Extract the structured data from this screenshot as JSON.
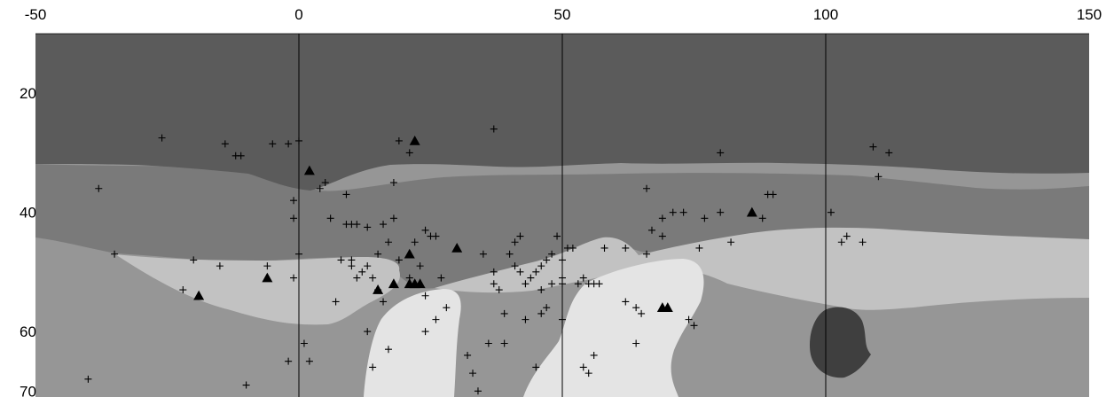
{
  "chart_data": {
    "type": "scatter",
    "title": "",
    "xlabel": "",
    "ylabel": "",
    "x_ticks": [
      -50,
      0,
      50,
      100,
      150
    ],
    "y_ticks": [
      20,
      40,
      60,
      70
    ],
    "x_range": [
      -50,
      150
    ],
    "y_range": [
      10,
      71
    ],
    "y_inverted": true,
    "vertical_lines_at": [
      0,
      50,
      100
    ],
    "region_colors": {
      "top_layer": "#5b5b5b",
      "upper_layer": "#7a7a7a",
      "middle_layer": "#969696",
      "light_layer": "#c2c2c2",
      "lightest_layer": "#e4e4e4",
      "dark_inclusion": "#3f3f3f"
    },
    "series": [
      {
        "marker": "plus",
        "points": [
          [
            -26,
            27.5
          ],
          [
            -14,
            28.5
          ],
          [
            -12,
            30.5
          ],
          [
            -11,
            30.5
          ],
          [
            -5,
            28.5
          ],
          [
            -2,
            28.5
          ],
          [
            0,
            28
          ],
          [
            -38,
            36
          ],
          [
            -35,
            47
          ],
          [
            -20,
            48
          ],
          [
            -15,
            49
          ],
          [
            -22,
            53
          ],
          [
            -6,
            49
          ],
          [
            -1,
            41
          ],
          [
            -1,
            38
          ],
          [
            -1,
            51
          ],
          [
            0,
            47
          ],
          [
            1,
            62
          ],
          [
            2,
            65
          ],
          [
            -2,
            65
          ],
          [
            4,
            36
          ],
          [
            5,
            35
          ],
          [
            6,
            41
          ],
          [
            9,
            37
          ],
          [
            9,
            42
          ],
          [
            10,
            42
          ],
          [
            11,
            42
          ],
          [
            13,
            42.5
          ],
          [
            7,
            55
          ],
          [
            8,
            48
          ],
          [
            10,
            48
          ],
          [
            11,
            51
          ],
          [
            12,
            50
          ],
          [
            13,
            49
          ],
          [
            14,
            51
          ],
          [
            10,
            49
          ],
          [
            15,
            47
          ],
          [
            15,
            53
          ],
          [
            16,
            55
          ],
          [
            13,
            60
          ],
          [
            14,
            66
          ],
          [
            17,
            63
          ],
          [
            18,
            35
          ],
          [
            16,
            42
          ],
          [
            18,
            41
          ],
          [
            17,
            45
          ],
          [
            19,
            48
          ],
          [
            21,
            51
          ],
          [
            22,
            52
          ],
          [
            21,
            30
          ],
          [
            22,
            45
          ],
          [
            23,
            49
          ],
          [
            24,
            43
          ],
          [
            25,
            44
          ],
          [
            26,
            44
          ],
          [
            27,
            51
          ],
          [
            19,
            28
          ],
          [
            24,
            54
          ],
          [
            24,
            60
          ],
          [
            26,
            58
          ],
          [
            28,
            56
          ],
          [
            32,
            64
          ],
          [
            33,
            67
          ],
          [
            34,
            70
          ],
          [
            36,
            62
          ],
          [
            37,
            50
          ],
          [
            37,
            52
          ],
          [
            38,
            53
          ],
          [
            39,
            57
          ],
          [
            39,
            62
          ],
          [
            41,
            45
          ],
          [
            40,
            47
          ],
          [
            41,
            49
          ],
          [
            42,
            50
          ],
          [
            43,
            52
          ],
          [
            43,
            58
          ],
          [
            44,
            51
          ],
          [
            45,
            50
          ],
          [
            45,
            66
          ],
          [
            46,
            53
          ],
          [
            46,
            57
          ],
          [
            47,
            56
          ],
          [
            48,
            52
          ],
          [
            49,
            44
          ],
          [
            48,
            47
          ],
          [
            50,
            48
          ],
          [
            51,
            46
          ],
          [
            50,
            51
          ],
          [
            50,
            52
          ],
          [
            50,
            58
          ],
          [
            53,
            52
          ],
          [
            52,
            46
          ],
          [
            54,
            51
          ],
          [
            55,
            52
          ],
          [
            56,
            52
          ],
          [
            57,
            52
          ],
          [
            55,
            67
          ],
          [
            56,
            64
          ],
          [
            54,
            66
          ],
          [
            58,
            46
          ],
          [
            62,
            46
          ],
          [
            62,
            55
          ],
          [
            64,
            56
          ],
          [
            65,
            57
          ],
          [
            64,
            62
          ],
          [
            66,
            47
          ],
          [
            67,
            43
          ],
          [
            66,
            36
          ],
          [
            69,
            41
          ],
          [
            69,
            44
          ],
          [
            71,
            40
          ],
          [
            73,
            40
          ],
          [
            76,
            46
          ],
          [
            74,
            58
          ],
          [
            75,
            59
          ],
          [
            77,
            41
          ],
          [
            80,
            30
          ],
          [
            80,
            40
          ],
          [
            82,
            45
          ],
          [
            88,
            41
          ],
          [
            89,
            37
          ],
          [
            90,
            37
          ],
          [
            101,
            40
          ],
          [
            103,
            45
          ],
          [
            104,
            44
          ],
          [
            107,
            45
          ],
          [
            110,
            34
          ],
          [
            112,
            30
          ],
          [
            109,
            29
          ],
          [
            -40,
            68
          ],
          [
            -10,
            69
          ],
          [
            37,
            26
          ],
          [
            42,
            44
          ],
          [
            46,
            49
          ],
          [
            47,
            48
          ],
          [
            35,
            47
          ]
        ]
      },
      {
        "marker": "triangle",
        "points": [
          [
            -19,
            54
          ],
          [
            -6,
            51
          ],
          [
            2,
            33
          ],
          [
            15,
            53
          ],
          [
            18,
            52
          ],
          [
            21,
            52
          ],
          [
            22,
            52
          ],
          [
            23,
            52
          ],
          [
            21,
            47
          ],
          [
            22,
            28
          ],
          [
            30,
            46
          ],
          [
            69,
            56
          ],
          [
            70,
            56
          ],
          [
            86,
            40
          ]
        ]
      }
    ]
  }
}
